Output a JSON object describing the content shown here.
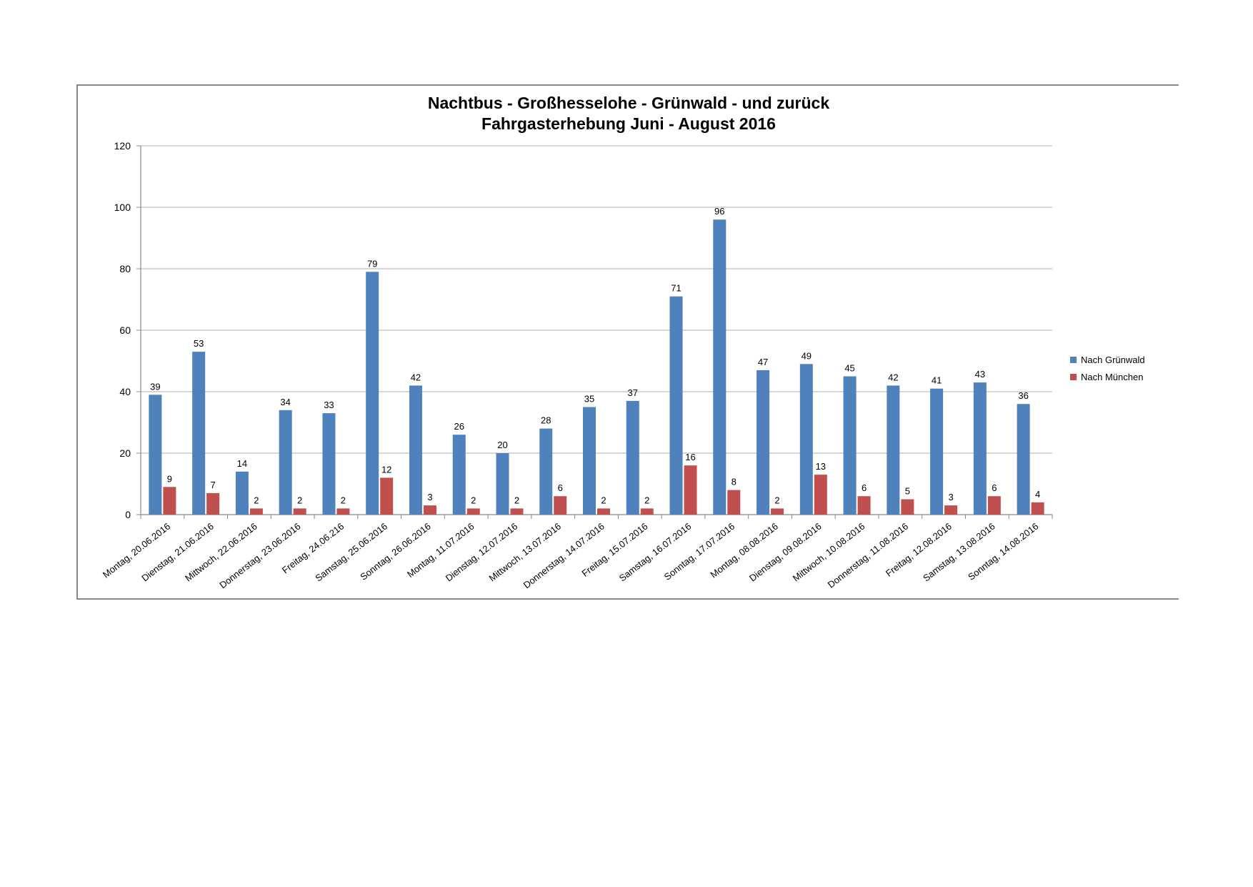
{
  "chart_data": {
    "type": "bar",
    "title": "Nachtbus - Großhesselohe - Grünwald - und zurück",
    "subtitle": "Fahrgasterhebung Juni - August 2016",
    "xlabel": "",
    "ylabel": "",
    "ylim": [
      0,
      120
    ],
    "yticks": [
      0,
      20,
      40,
      60,
      80,
      100,
      120
    ],
    "grid": true,
    "legend_position": "right",
    "categories": [
      "Montag, 20.06.2016",
      "Dienstag, 21.06.2016",
      "Mittwoch, 22.06.2016",
      "Donnerstag, 23.06.2016",
      "Freitag, 24.06.216",
      "Samstag, 25.06.2016",
      "Sonntag, 26.06.2016",
      "Montag, 11.07.2016",
      "Dienstag, 12.07.2016",
      "Mittwoch, 13.07.2016",
      "Donnerstag, 14.07.2016",
      "Freitag, 15.07.2016",
      "Samstag, 16.07.2016",
      "Sonntag, 17.07.2016",
      "Montag, 08.08.2016",
      "Dienstag, 09.08.2016",
      "Mittwoch, 10.08.2016",
      "Donnerstag, 11.08.2016",
      "Freitag, 12.08.2016",
      "Samstag, 13.08.2016",
      "Sonntag, 14.08.2016"
    ],
    "series": [
      {
        "name": "Nach Grünwald",
        "color": "#4F81BD",
        "values": [
          39,
          53,
          14,
          34,
          33,
          79,
          42,
          26,
          20,
          28,
          35,
          37,
          71,
          96,
          47,
          49,
          45,
          42,
          41,
          43,
          36
        ]
      },
      {
        "name": "Nach München",
        "color": "#C0504D",
        "values": [
          9,
          7,
          2,
          2,
          2,
          12,
          3,
          2,
          2,
          6,
          2,
          2,
          16,
          8,
          2,
          13,
          6,
          5,
          3,
          6,
          4
        ]
      }
    ]
  }
}
